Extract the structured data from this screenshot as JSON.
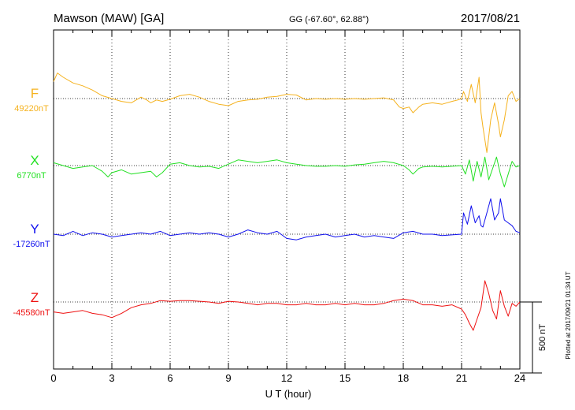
{
  "header": {
    "station": "Mawson (MAW)  [GA]",
    "coords": "GG (-67.60°,  62.88°)",
    "date": "2017/08/21"
  },
  "chart_data": {
    "type": "line",
    "xlabel": "U T (hour)",
    "xlim": [
      0,
      24
    ],
    "xticks": [
      0,
      3,
      6,
      9,
      12,
      15,
      18,
      21,
      24
    ],
    "scale_bar": {
      "label": "500 nT",
      "value_nT": 500
    },
    "plotted_note": "Plotted at 2017/09/21 01:34 UT",
    "series": [
      {
        "name": "F",
        "baseline_label": "49220nT",
        "baseline_nT": 49220,
        "color": "#f5b21e",
        "points": [
          [
            0,
            120
          ],
          [
            0.2,
            180
          ],
          [
            0.5,
            150
          ],
          [
            1,
            110
          ],
          [
            1.5,
            90
          ],
          [
            2,
            60
          ],
          [
            2.5,
            20
          ],
          [
            3,
            0
          ],
          [
            3.5,
            -20
          ],
          [
            4,
            -30
          ],
          [
            4.5,
            10
          ],
          [
            4.8,
            -10
          ],
          [
            5,
            -30
          ],
          [
            5.3,
            -10
          ],
          [
            5.6,
            -20
          ],
          [
            6,
            -5
          ],
          [
            6.5,
            20
          ],
          [
            7,
            30
          ],
          [
            7.5,
            10
          ],
          [
            8,
            -20
          ],
          [
            8.5,
            -40
          ],
          [
            9,
            -50
          ],
          [
            9.5,
            -20
          ],
          [
            10,
            -10
          ],
          [
            10.5,
            -5
          ],
          [
            11,
            10
          ],
          [
            11.5,
            15
          ],
          [
            12,
            30
          ],
          [
            12.5,
            25
          ],
          [
            13,
            -10
          ],
          [
            13.5,
            0
          ],
          [
            14,
            -5
          ],
          [
            14.5,
            0
          ],
          [
            15,
            -5
          ],
          [
            15.5,
            0
          ],
          [
            16,
            -5
          ],
          [
            16.5,
            0
          ],
          [
            17,
            5
          ],
          [
            17.5,
            -10
          ],
          [
            17.8,
            -60
          ],
          [
            18,
            -70
          ],
          [
            18.3,
            -60
          ],
          [
            18.5,
            -100
          ],
          [
            18.8,
            -60
          ],
          [
            19,
            -40
          ],
          [
            19.5,
            -30
          ],
          [
            20,
            -40
          ],
          [
            20.5,
            -20
          ],
          [
            20.8,
            -10
          ],
          [
            21,
            0
          ],
          [
            21.1,
            50
          ],
          [
            21.3,
            -20
          ],
          [
            21.5,
            100
          ],
          [
            21.7,
            -30
          ],
          [
            21.9,
            150
          ],
          [
            22,
            -100
          ],
          [
            22.1,
            -200
          ],
          [
            22.3,
            -380
          ],
          [
            22.5,
            -150
          ],
          [
            22.7,
            -30
          ],
          [
            22.9,
            -180
          ],
          [
            23,
            -270
          ],
          [
            23.2,
            -150
          ],
          [
            23.4,
            20
          ],
          [
            23.6,
            50
          ],
          [
            23.8,
            -20
          ],
          [
            24,
            0
          ]
        ]
      },
      {
        "name": "X",
        "baseline_label": "6770nT",
        "baseline_nT": 6770,
        "color": "#22e022",
        "points": [
          [
            0,
            20
          ],
          [
            0.5,
            0
          ],
          [
            1,
            -20
          ],
          [
            1.5,
            -10
          ],
          [
            2,
            0
          ],
          [
            2.5,
            -40
          ],
          [
            2.8,
            -80
          ],
          [
            3,
            -50
          ],
          [
            3.5,
            -30
          ],
          [
            4,
            -60
          ],
          [
            4.5,
            -50
          ],
          [
            5,
            -40
          ],
          [
            5.3,
            -80
          ],
          [
            5.6,
            -50
          ],
          [
            6,
            10
          ],
          [
            6.5,
            20
          ],
          [
            7,
            0
          ],
          [
            7.5,
            -10
          ],
          [
            8,
            -5
          ],
          [
            8.5,
            -20
          ],
          [
            9,
            10
          ],
          [
            9.5,
            40
          ],
          [
            10,
            30
          ],
          [
            10.5,
            20
          ],
          [
            11,
            30
          ],
          [
            11.5,
            40
          ],
          [
            12,
            20
          ],
          [
            12.5,
            10
          ],
          [
            13,
            0
          ],
          [
            13.5,
            -5
          ],
          [
            14,
            -5
          ],
          [
            14.5,
            0
          ],
          [
            15,
            -5
          ],
          [
            15.5,
            5
          ],
          [
            16,
            10
          ],
          [
            16.5,
            20
          ],
          [
            17,
            30
          ],
          [
            17.5,
            20
          ],
          [
            18,
            0
          ],
          [
            18.3,
            -30
          ],
          [
            18.5,
            -60
          ],
          [
            18.8,
            -20
          ],
          [
            19,
            -10
          ],
          [
            19.5,
            -5
          ],
          [
            20,
            -10
          ],
          [
            20.5,
            -5
          ],
          [
            21,
            0
          ],
          [
            21.2,
            -60
          ],
          [
            21.4,
            40
          ],
          [
            21.6,
            -110
          ],
          [
            21.8,
            30
          ],
          [
            22,
            -80
          ],
          [
            22.2,
            60
          ],
          [
            22.4,
            -100
          ],
          [
            22.6,
            -20
          ],
          [
            22.8,
            60
          ],
          [
            23,
            -60
          ],
          [
            23.2,
            -150
          ],
          [
            23.4,
            -60
          ],
          [
            23.6,
            30
          ],
          [
            23.8,
            -10
          ],
          [
            24,
            0
          ]
        ]
      },
      {
        "name": "Y",
        "baseline_label": "-17260nT",
        "baseline_nT": -17260,
        "color": "#1111ee",
        "points": [
          [
            0,
            0
          ],
          [
            0.5,
            -10
          ],
          [
            1,
            20
          ],
          [
            1.5,
            -10
          ],
          [
            2,
            10
          ],
          [
            2.5,
            0
          ],
          [
            3,
            -20
          ],
          [
            3.5,
            -10
          ],
          [
            4,
            0
          ],
          [
            4.5,
            10
          ],
          [
            5,
            0
          ],
          [
            5.5,
            20
          ],
          [
            6,
            -10
          ],
          [
            6.5,
            0
          ],
          [
            7,
            10
          ],
          [
            7.5,
            0
          ],
          [
            8,
            10
          ],
          [
            8.5,
            0
          ],
          [
            9,
            -20
          ],
          [
            9.5,
            0
          ],
          [
            10,
            30
          ],
          [
            10.5,
            10
          ],
          [
            11,
            0
          ],
          [
            11.5,
            20
          ],
          [
            12,
            -30
          ],
          [
            12.5,
            -40
          ],
          [
            13,
            -20
          ],
          [
            13.5,
            -10
          ],
          [
            14,
            0
          ],
          [
            14.5,
            -20
          ],
          [
            15,
            -10
          ],
          [
            15.5,
            0
          ],
          [
            16,
            -20
          ],
          [
            16.5,
            -10
          ],
          [
            17,
            -20
          ],
          [
            17.5,
            -30
          ],
          [
            18,
            10
          ],
          [
            18.5,
            20
          ],
          [
            19,
            0
          ],
          [
            19.5,
            0
          ],
          [
            20,
            -10
          ],
          [
            20.5,
            -5
          ],
          [
            21,
            0
          ],
          [
            21.1,
            150
          ],
          [
            21.3,
            70
          ],
          [
            21.5,
            200
          ],
          [
            21.7,
            80
          ],
          [
            21.9,
            130
          ],
          [
            22,
            60
          ],
          [
            22.1,
            50
          ],
          [
            22.3,
            150
          ],
          [
            22.5,
            250
          ],
          [
            22.7,
            100
          ],
          [
            22.9,
            150
          ],
          [
            23,
            250
          ],
          [
            23.2,
            100
          ],
          [
            23.4,
            80
          ],
          [
            23.6,
            60
          ],
          [
            23.8,
            20
          ],
          [
            24,
            10
          ]
        ]
      },
      {
        "name": "Z",
        "baseline_label": "-45580nT",
        "baseline_nT": -45580,
        "color": "#ee1111",
        "points": [
          [
            0,
            -70
          ],
          [
            0.5,
            -80
          ],
          [
            1,
            -70
          ],
          [
            1.5,
            -60
          ],
          [
            2,
            -80
          ],
          [
            2.5,
            -90
          ],
          [
            3,
            -110
          ],
          [
            3.5,
            -80
          ],
          [
            4,
            -40
          ],
          [
            4.5,
            -20
          ],
          [
            5,
            -10
          ],
          [
            5.5,
            10
          ],
          [
            6,
            5
          ],
          [
            6.5,
            10
          ],
          [
            7,
            10
          ],
          [
            7.5,
            5
          ],
          [
            8,
            0
          ],
          [
            8.5,
            -10
          ],
          [
            9,
            5
          ],
          [
            9.5,
            0
          ],
          [
            10,
            -10
          ],
          [
            10.5,
            -20
          ],
          [
            11,
            -10
          ],
          [
            11.5,
            -10
          ],
          [
            12,
            -20
          ],
          [
            12.5,
            -20
          ],
          [
            13,
            -10
          ],
          [
            13.5,
            -20
          ],
          [
            14,
            -20
          ],
          [
            14.5,
            -10
          ],
          [
            15,
            -20
          ],
          [
            15.5,
            -10
          ],
          [
            16,
            -20
          ],
          [
            16.5,
            -20
          ],
          [
            17,
            -10
          ],
          [
            17.5,
            10
          ],
          [
            18,
            20
          ],
          [
            18.5,
            10
          ],
          [
            19,
            -20
          ],
          [
            19.5,
            -20
          ],
          [
            20,
            -30
          ],
          [
            20.5,
            -20
          ],
          [
            21,
            -50
          ],
          [
            21.2,
            -90
          ],
          [
            21.4,
            -150
          ],
          [
            21.6,
            -200
          ],
          [
            21.8,
            -120
          ],
          [
            22,
            -40
          ],
          [
            22.2,
            150
          ],
          [
            22.4,
            60
          ],
          [
            22.6,
            -60
          ],
          [
            22.8,
            -120
          ],
          [
            23,
            80
          ],
          [
            23.2,
            -30
          ],
          [
            23.4,
            -100
          ],
          [
            23.6,
            -10
          ],
          [
            23.8,
            -30
          ],
          [
            24,
            0
          ]
        ]
      }
    ]
  }
}
